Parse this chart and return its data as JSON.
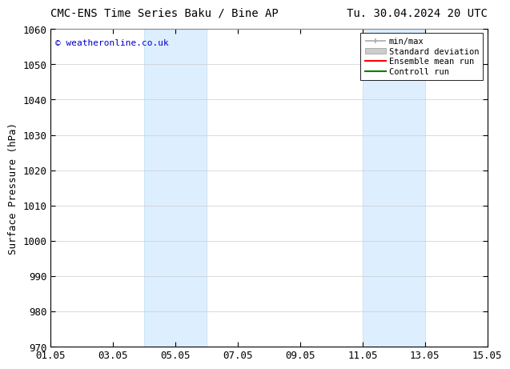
{
  "title_left": "CMC-ENS Time Series Baku / Bine AP",
  "title_right": "Tu. 30.04.2024 20 UTC",
  "ylabel": "Surface Pressure (hPa)",
  "xlabel_ticks": [
    "01.05",
    "03.05",
    "05.05",
    "07.05",
    "09.05",
    "11.05",
    "13.05",
    "15.05"
  ],
  "xtick_positions": [
    0,
    2,
    4,
    6,
    8,
    10,
    12,
    14
  ],
  "xlim": [
    0,
    14
  ],
  "ylim": [
    970,
    1060
  ],
  "yticks": [
    970,
    980,
    990,
    1000,
    1010,
    1020,
    1030,
    1040,
    1050,
    1060
  ],
  "shaded_bands": [
    {
      "xmin": 3.0,
      "xmax": 5.0
    },
    {
      "xmin": 10.0,
      "xmax": 12.0
    }
  ],
  "band_color": "#ddeeff",
  "band_edge_color": "#bbddee",
  "background_color": "#ffffff",
  "copyright_text": "© weatheronline.co.uk",
  "copyright_color": "#0000cc",
  "legend_items": [
    {
      "label": "min/max",
      "color": "#aaaaaa",
      "lw": 1.2
    },
    {
      "label": "Standard deviation",
      "color": "#cccccc",
      "lw": 6
    },
    {
      "label": "Ensemble mean run",
      "color": "#ff0000",
      "lw": 1.5
    },
    {
      "label": "Controll run",
      "color": "#008000",
      "lw": 1.5
    }
  ],
  "grid_color": "#cccccc",
  "tick_label_fontsize": 9,
  "title_fontsize": 10,
  "ylabel_fontsize": 9,
  "copyright_fontsize": 8
}
